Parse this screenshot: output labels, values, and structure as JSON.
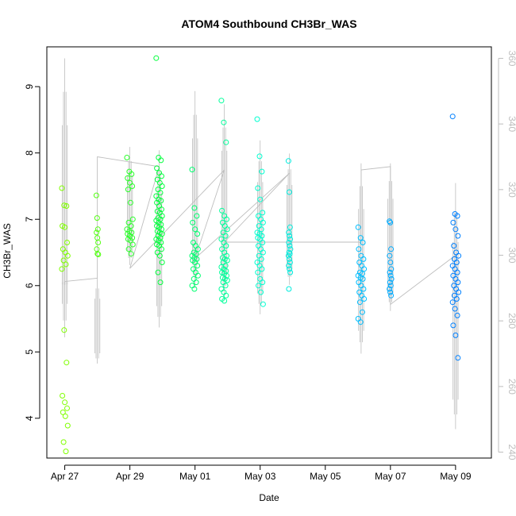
{
  "chart_data": {
    "type": "scatter",
    "title": "ATOM4 Southbound CH3Br_WAS",
    "xlabel": "Date",
    "ylabel": "CH3Br_WAS",
    "x_ticks": [
      "Apr 27",
      "Apr 29",
      "May 01",
      "May 03",
      "May 05",
      "May 07",
      "May 09"
    ],
    "x_tick_days": [
      0,
      2,
      4,
      6,
      8,
      10,
      12
    ],
    "x_range_days": [
      -0.55,
      13.1
    ],
    "y_ticks_left": [
      4,
      5,
      6,
      7,
      8,
      9
    ],
    "ylim_left": [
      3.4,
      9.6
    ],
    "y_ticks_right": [
      240,
      260,
      280,
      300,
      320,
      340,
      360
    ],
    "ylim_right_labels_note": "",
    "ylim_right": [
      238.2,
      363.5
    ],
    "grid": false,
    "colors": {
      "point_gradient": [
        "#80ff00",
        "#00ff40",
        "#00ffd0",
        "#00c0ff",
        "#0080ff"
      ],
      "secondary_trace": "#bebebe",
      "axis": "#000000",
      "right_axis": "#bdbdbd"
    },
    "series": [
      {
        "day": 0.0,
        "values": [
          7.47,
          7.21,
          7.2,
          6.9,
          6.88,
          6.65,
          6.55,
          6.5,
          6.45,
          6.38,
          6.32,
          6.25,
          5.33,
          4.84,
          4.34,
          4.24,
          4.15,
          4.09,
          4.03,
          3.89,
          3.64,
          3.5
        ]
      },
      {
        "day": 1.0,
        "values": [
          7.36,
          7.02,
          6.85,
          6.8,
          6.72,
          6.65,
          6.55,
          6.48,
          6.47
        ]
      },
      {
        "day": 2.0,
        "values": [
          7.93,
          7.72,
          7.68,
          7.62,
          7.55,
          7.5,
          7.45,
          7.25,
          7.0,
          6.95,
          6.9,
          6.85,
          6.82,
          6.8,
          6.78,
          6.75,
          6.72,
          6.7,
          6.68,
          6.62,
          6.55,
          6.48
        ]
      },
      {
        "day": 2.9,
        "values": [
          9.43,
          7.93,
          7.89,
          7.77,
          7.7,
          7.65,
          7.6,
          7.55,
          7.5,
          7.45,
          7.4,
          7.35,
          7.3,
          7.28,
          7.25,
          7.2,
          7.15,
          7.12,
          7.1,
          7.05,
          7.02,
          7.0,
          6.98,
          6.95,
          6.92,
          6.9,
          6.88,
          6.85,
          6.82,
          6.8,
          6.78,
          6.75,
          6.72,
          6.7,
          6.68,
          6.65,
          6.62,
          6.6,
          6.55,
          6.5,
          6.45,
          6.35,
          6.2,
          6.05
        ]
      },
      {
        "day": 4.0,
        "values": [
          7.75,
          7.17,
          7.05,
          6.95,
          6.85,
          6.78,
          6.65,
          6.6,
          6.55,
          6.5,
          6.48,
          6.45,
          6.42,
          6.4,
          6.38,
          6.35,
          6.3,
          6.25,
          6.2,
          6.15,
          6.1,
          6.05,
          6.0,
          5.95
        ]
      },
      {
        "day": 4.9,
        "values": [
          8.79,
          8.46,
          8.16,
          7.13,
          7.05,
          7.0,
          6.95,
          6.9,
          6.85,
          6.8,
          6.75,
          6.7,
          6.65,
          6.6,
          6.55,
          6.5,
          6.45,
          6.42,
          6.4,
          6.38,
          6.35,
          6.3,
          6.28,
          6.25,
          6.22,
          6.2,
          6.18,
          6.15,
          6.12,
          6.1,
          6.08,
          6.05,
          6.0,
          5.95,
          5.9,
          5.85,
          5.8,
          5.77
        ]
      },
      {
        "day": 6.0,
        "values": [
          8.51,
          7.95,
          7.72,
          7.47,
          7.3,
          7.1,
          7.05,
          7.0,
          6.95,
          6.9,
          6.85,
          6.8,
          6.78,
          6.75,
          6.72,
          6.7,
          6.65,
          6.6,
          6.55,
          6.5,
          6.45,
          6.4,
          6.35,
          6.3,
          6.25,
          6.2,
          6.1,
          6.05,
          6.0,
          5.9,
          5.72
        ]
      },
      {
        "day": 6.9,
        "values": [
          7.88,
          7.41,
          6.88,
          6.8,
          6.75,
          6.7,
          6.65,
          6.6,
          6.55,
          6.5,
          6.48,
          6.45,
          6.4,
          6.35,
          6.3,
          6.25,
          6.2,
          5.95
        ]
      },
      {
        "day": 9.1,
        "values": [
          6.88,
          6.72,
          6.65,
          6.55,
          6.45,
          6.4,
          6.35,
          6.3,
          6.25,
          6.2,
          6.18,
          6.15,
          6.12,
          6.1,
          6.05,
          6.0,
          5.95,
          5.9,
          5.85,
          5.8,
          5.75,
          5.6,
          5.5,
          5.45
        ]
      },
      {
        "day": 10.0,
        "values": [
          6.97,
          6.95,
          6.55,
          6.45,
          6.35,
          6.25,
          6.2,
          6.15,
          6.1,
          6.05,
          6.0,
          5.95,
          5.9,
          5.85
        ]
      },
      {
        "day": 12.0,
        "values": [
          8.55,
          7.08,
          7.05,
          6.95,
          6.85,
          6.75,
          6.6,
          6.5,
          6.45,
          6.4,
          6.35,
          6.3,
          6.25,
          6.2,
          6.15,
          6.1,
          6.05,
          6.0,
          5.95,
          5.9,
          5.85,
          5.8,
          5.75,
          5.65,
          5.55,
          5.4,
          5.25,
          4.91
        ]
      }
    ],
    "secondary_trace": {
      "axis": "right",
      "segments": [
        {
          "day": 0.0,
          "from": 275,
          "to": 360
        },
        {
          "day": 0.0,
          "from": 291,
          "to": 292
        },
        {
          "day": 1.0,
          "from": 267,
          "to": 293
        },
        {
          "day": 2.0,
          "from": 297,
          "to": 333
        },
        {
          "day": 2.9,
          "from": 278,
          "to": 332
        },
        {
          "day": 4.0,
          "from": 290,
          "to": 350
        },
        {
          "day": 4.9,
          "from": 287,
          "to": 346
        },
        {
          "day": 6.0,
          "from": 282,
          "to": 335
        },
        {
          "day": 6.9,
          "from": 291,
          "to": 331
        },
        {
          "day": 9.1,
          "from": 270,
          "to": 328
        },
        {
          "day": 10.0,
          "from": 283,
          "to": 328
        },
        {
          "day": 12.0,
          "from": 247,
          "to": 322
        }
      ],
      "path": [
        {
          "day": 0.0,
          "v": 292
        },
        {
          "day": 1.0,
          "v": 293
        },
        {
          "day": 1.0,
          "v": 330
        },
        {
          "day": 2.9,
          "v": 327
        },
        {
          "day": 2.0,
          "v": 296
        },
        {
          "day": 4.9,
          "v": 326
        },
        {
          "day": 4.0,
          "v": 299
        },
        {
          "day": 6.9,
          "v": 325
        },
        {
          "day": 4.9,
          "v": 304
        },
        {
          "day": 9.1,
          "v": 304
        },
        {
          "day": 9.1,
          "v": 326
        },
        {
          "day": 10.0,
          "v": 327
        },
        {
          "day": 10.0,
          "v": 285
        },
        {
          "day": 12.0,
          "v": 300
        }
      ]
    }
  }
}
